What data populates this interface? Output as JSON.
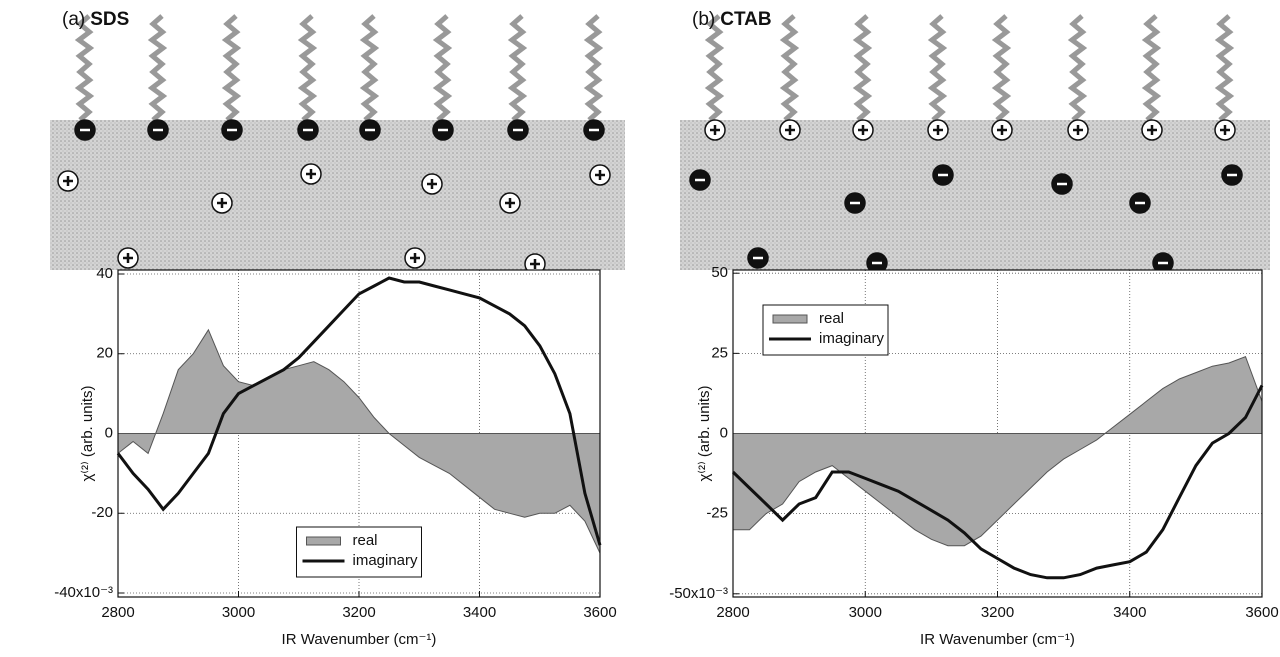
{
  "chart_data": [
    {
      "type": "line",
      "panel_label": "(a)",
      "title": "SDS",
      "x_label": "IR Wavenumber (cm⁻¹)",
      "y_label": "χ⁽²⁾ (arb. units)",
      "x": [
        2800,
        2825,
        2850,
        2875,
        2900,
        2925,
        2950,
        2975,
        3000,
        3025,
        3050,
        3075,
        3100,
        3125,
        3150,
        3175,
        3200,
        3225,
        3250,
        3275,
        3300,
        3325,
        3350,
        3375,
        3400,
        3425,
        3450,
        3475,
        3500,
        3525,
        3550,
        3575,
        3600
      ],
      "series": [
        {
          "name": "real",
          "color": "#a8a8a8",
          "fill": true,
          "values": [
            -5,
            -2,
            -5,
            5,
            16,
            20,
            26,
            17,
            13,
            12,
            14,
            16,
            17,
            18,
            16,
            13,
            9,
            4,
            0,
            -3,
            -6,
            -8,
            -10,
            -13,
            -16,
            -19,
            -20,
            -21,
            -20,
            -20,
            -18,
            -22,
            -30
          ]
        },
        {
          "name": "imaginary",
          "color": "#111111",
          "fill": false,
          "values": [
            -5,
            -10,
            -14,
            -19,
            -15,
            -10,
            -5,
            5,
            10,
            12,
            14,
            16,
            19,
            23,
            27,
            31,
            35,
            37,
            39,
            38,
            38,
            37,
            36,
            35,
            34,
            32,
            30,
            27,
            22,
            15,
            5,
            -15,
            -28
          ]
        }
      ],
      "xlim": [
        2800,
        3600
      ],
      "xticks": [
        2800,
        3000,
        3200,
        3400,
        3600
      ],
      "ylim": [
        -41,
        41
      ],
      "yticks": [
        40,
        20,
        0,
        -20,
        {
          "value": -40,
          "label": "-40x10⁻³"
        }
      ],
      "grid": true,
      "legend": "lower center"
    },
    {
      "type": "line",
      "panel_label": "(b)",
      "title": "CTAB",
      "x_label": "IR Wavenumber (cm⁻¹)",
      "y_label": "χ⁽²⁾ (arb. units)",
      "x": [
        2800,
        2825,
        2850,
        2875,
        2900,
        2925,
        2950,
        2975,
        3000,
        3025,
        3050,
        3075,
        3100,
        3125,
        3150,
        3175,
        3200,
        3225,
        3250,
        3275,
        3300,
        3325,
        3350,
        3375,
        3400,
        3425,
        3450,
        3475,
        3500,
        3525,
        3550,
        3575,
        3600
      ],
      "series": [
        {
          "name": "real",
          "color": "#a8a8a8",
          "fill": true,
          "values": [
            -30,
            -30,
            -25,
            -22,
            -15,
            -12,
            -10,
            -14,
            -18,
            -22,
            -26,
            -30,
            -33,
            -35,
            -35,
            -32,
            -27,
            -22,
            -17,
            -12,
            -8,
            -5,
            -2,
            2,
            6,
            10,
            14,
            17,
            19,
            21,
            22,
            24,
            10
          ]
        },
        {
          "name": "imaginary",
          "color": "#111111",
          "fill": false,
          "values": [
            -12,
            -17,
            -22,
            -27,
            -22,
            -20,
            -12,
            -12,
            -14,
            -16,
            -18,
            -21,
            -24,
            -27,
            -31,
            -36,
            -39,
            -42,
            -44,
            -45,
            -45,
            -44,
            -42,
            -41,
            -40,
            -37,
            -30,
            -20,
            -10,
            -3,
            0,
            5,
            15
          ]
        }
      ],
      "xlim": [
        2800,
        3600
      ],
      "xticks": [
        2800,
        3000,
        3200,
        3400,
        3600
      ],
      "ylim": [
        -51,
        51
      ],
      "yticks": [
        50,
        25,
        0,
        -25,
        {
          "value": -50,
          "label": "-50x10⁻³"
        }
      ],
      "grid": true,
      "legend": "upper left"
    }
  ]
}
